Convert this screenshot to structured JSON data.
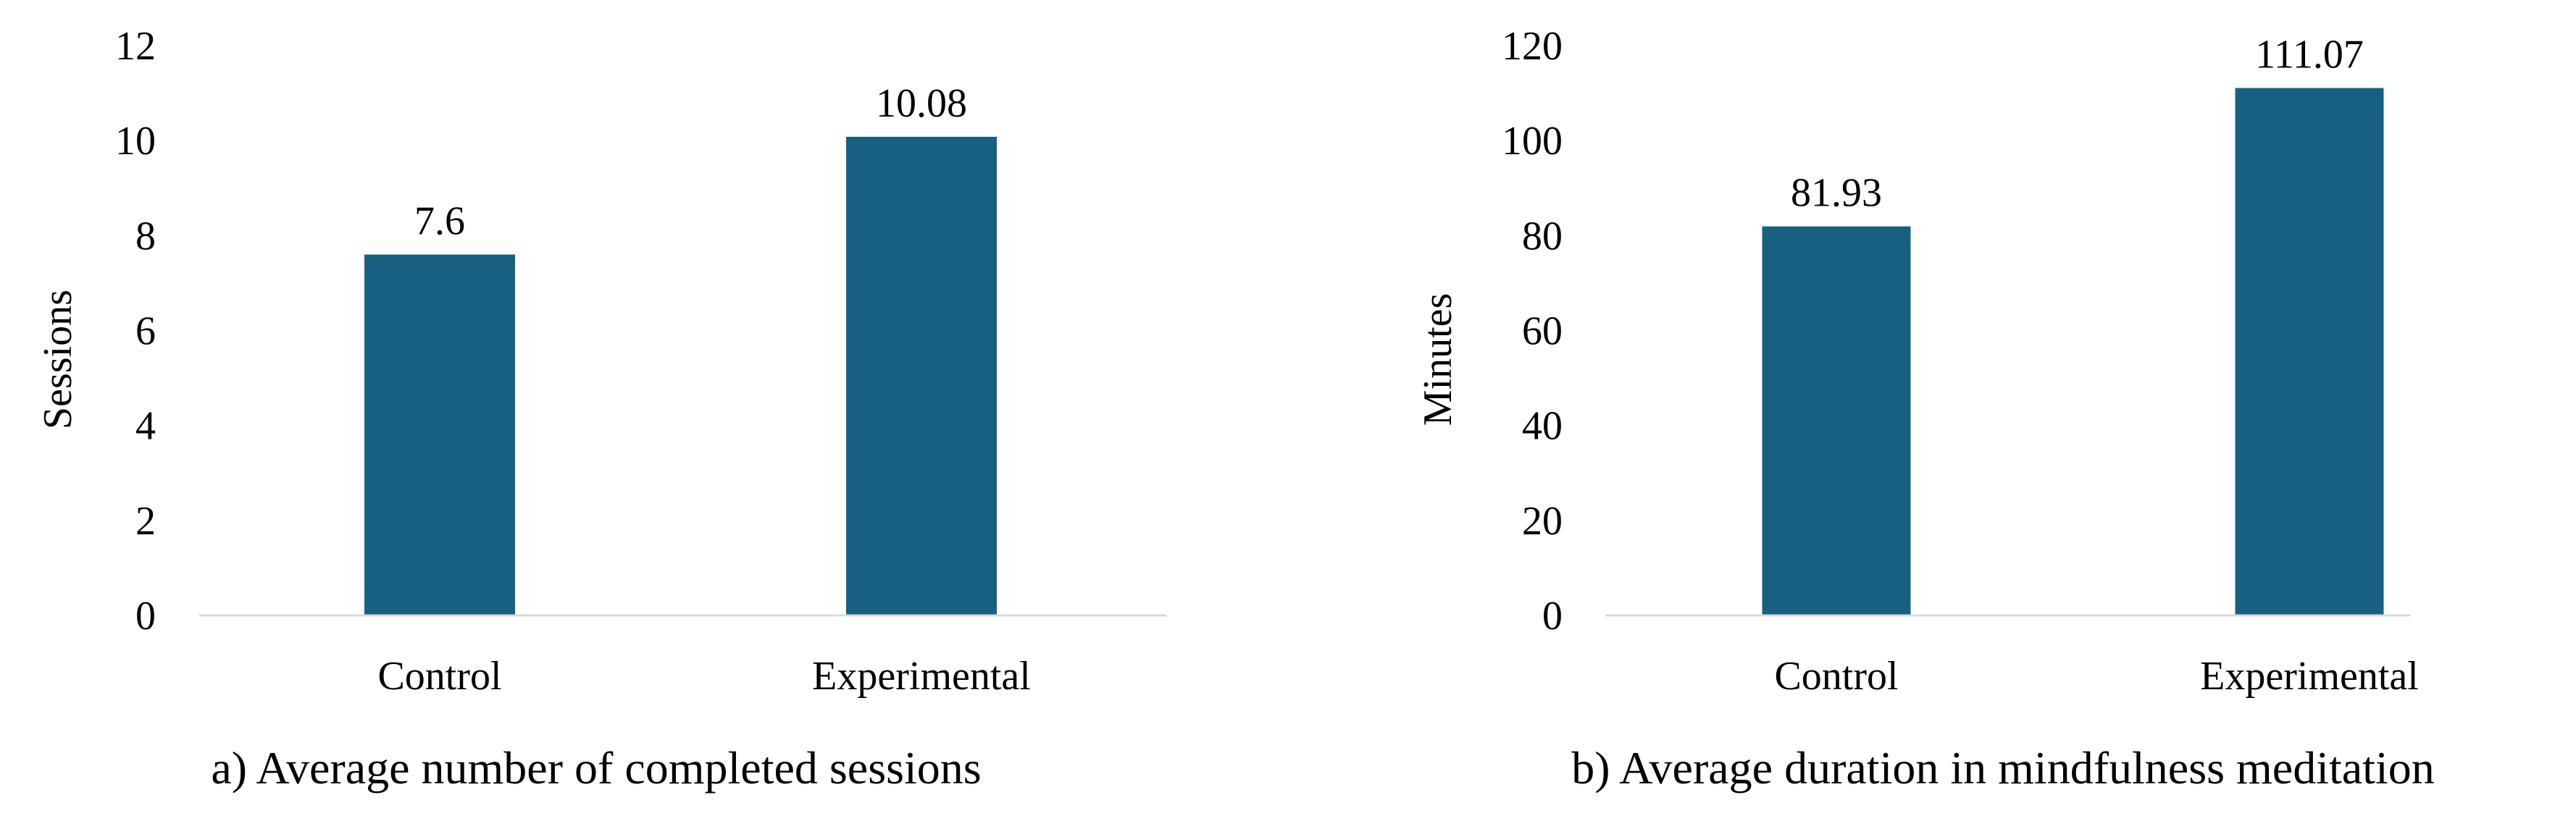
{
  "colors": {
    "bar": "#176082",
    "axis": "#d9d9d9"
  },
  "chart_data": [
    {
      "type": "bar",
      "title": "a) Average number of completed sessions",
      "xlabel": "",
      "ylabel": "Sessions",
      "categories": [
        "Control",
        "Experimental"
      ],
      "values": [
        7.6,
        10.08
      ],
      "data_labels": [
        "7.6",
        "10.08"
      ],
      "ylim": [
        0,
        12
      ],
      "yticks": [
        0,
        2,
        4,
        6,
        8,
        10,
        12
      ],
      "grid": false
    },
    {
      "type": "bar",
      "title": "b) Average duration in mindfulness meditation",
      "xlabel": "",
      "ylabel": "Minutes",
      "categories": [
        "Control",
        "Experimental"
      ],
      "values": [
        81.93,
        111.07
      ],
      "data_labels": [
        "81.93",
        "111.07"
      ],
      "ylim": [
        0,
        120
      ],
      "yticks": [
        0,
        20,
        40,
        60,
        80,
        100,
        120
      ],
      "grid": false
    }
  ]
}
